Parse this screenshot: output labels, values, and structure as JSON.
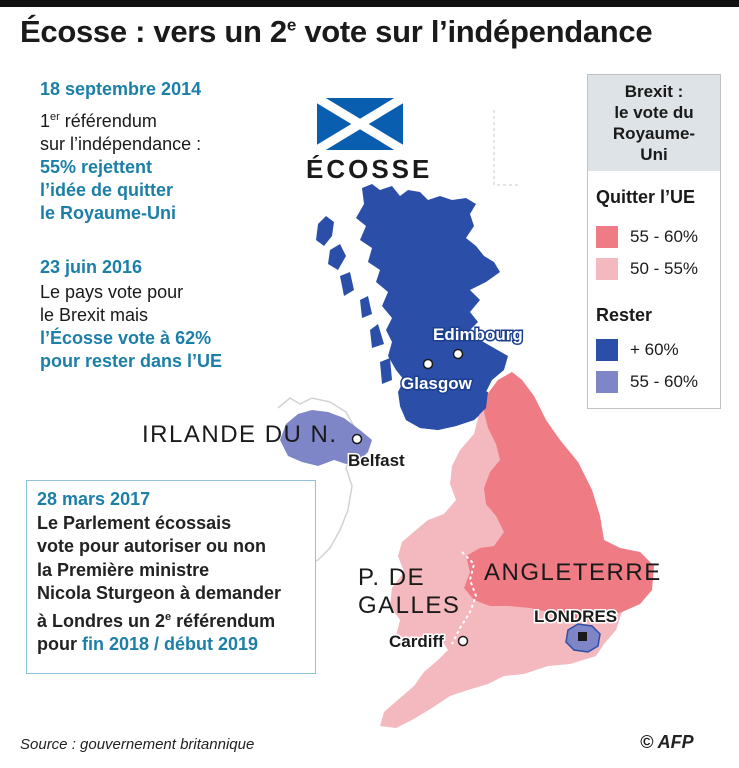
{
  "title": {
    "main": "Écosse : vers un 2",
    "sup": "e",
    "rest": " vote sur l’indépendance"
  },
  "block_2014": {
    "date": "18 septembre 2014",
    "line1_pre": "1",
    "line1_sup": "er",
    "line1_post": " référendum",
    "line2": "sur l’indépendance :",
    "hl1": "55% rejettent",
    "hl2": "l’idée de quitter",
    "hl3": "le Royaume-Uni"
  },
  "block_2016": {
    "date": "23 juin 2016",
    "line1": "Le pays vote pour",
    "line2": "le Brexit mais",
    "hl1": "l’Écosse vote à 62%",
    "hl2": "pour rester dans l’UE"
  },
  "block_2017": {
    "date": "28 mars 2017",
    "l1": "Le Parlement écossais",
    "l2": "vote pour autoriser ou non",
    "l3": "la Première ministre",
    "l4": "Nicola Sturgeon à demander",
    "l5_pre": "à Londres un 2",
    "l5_sup": "e",
    "l5_post": " référendum",
    "l6_pre": "pour ",
    "l6_hl": "fin 2018 / début 2019"
  },
  "legend": {
    "title_l1": "Brexit :",
    "title_l2": "le vote du",
    "title_l3": "Royaume-",
    "title_l4": "Uni",
    "leave_label": "Quitter l’UE",
    "leave_items": [
      {
        "label": "55 - 60%",
        "color": "#ef7b85"
      },
      {
        "label": "50 - 55%",
        "color": "#f4b9be"
      }
    ],
    "remain_label": "Rester",
    "remain_items": [
      {
        "label": "+ 60%",
        "color": "#2b4fa8"
      },
      {
        "label": "55 - 60%",
        "color": "#7e86c8"
      }
    ]
  },
  "map": {
    "flag_label": "ÉCOSSE",
    "regions": {
      "ireland_n": "IRLANDE DU N.",
      "wales_l1": "P. DE",
      "wales_l2": "GALLES",
      "england": "ANGLETERRE"
    },
    "cities": {
      "edinburgh": "Edimbourg",
      "glasgow": "Glasgow",
      "belfast": "Belfast",
      "cardiff": "Cardiff",
      "london": "LONDRES"
    },
    "colors": {
      "scotland": "#2b4fa8",
      "northern_ireland": "#7e86c8",
      "leave_high": "#ef7b85",
      "leave_low": "#f4b9be",
      "flag_blue": "#0a5eb0",
      "ireland_outline": "#cfd3d6"
    }
  },
  "footer": {
    "source": "Source : gouvernement britannique",
    "credit": "© AFP"
  }
}
